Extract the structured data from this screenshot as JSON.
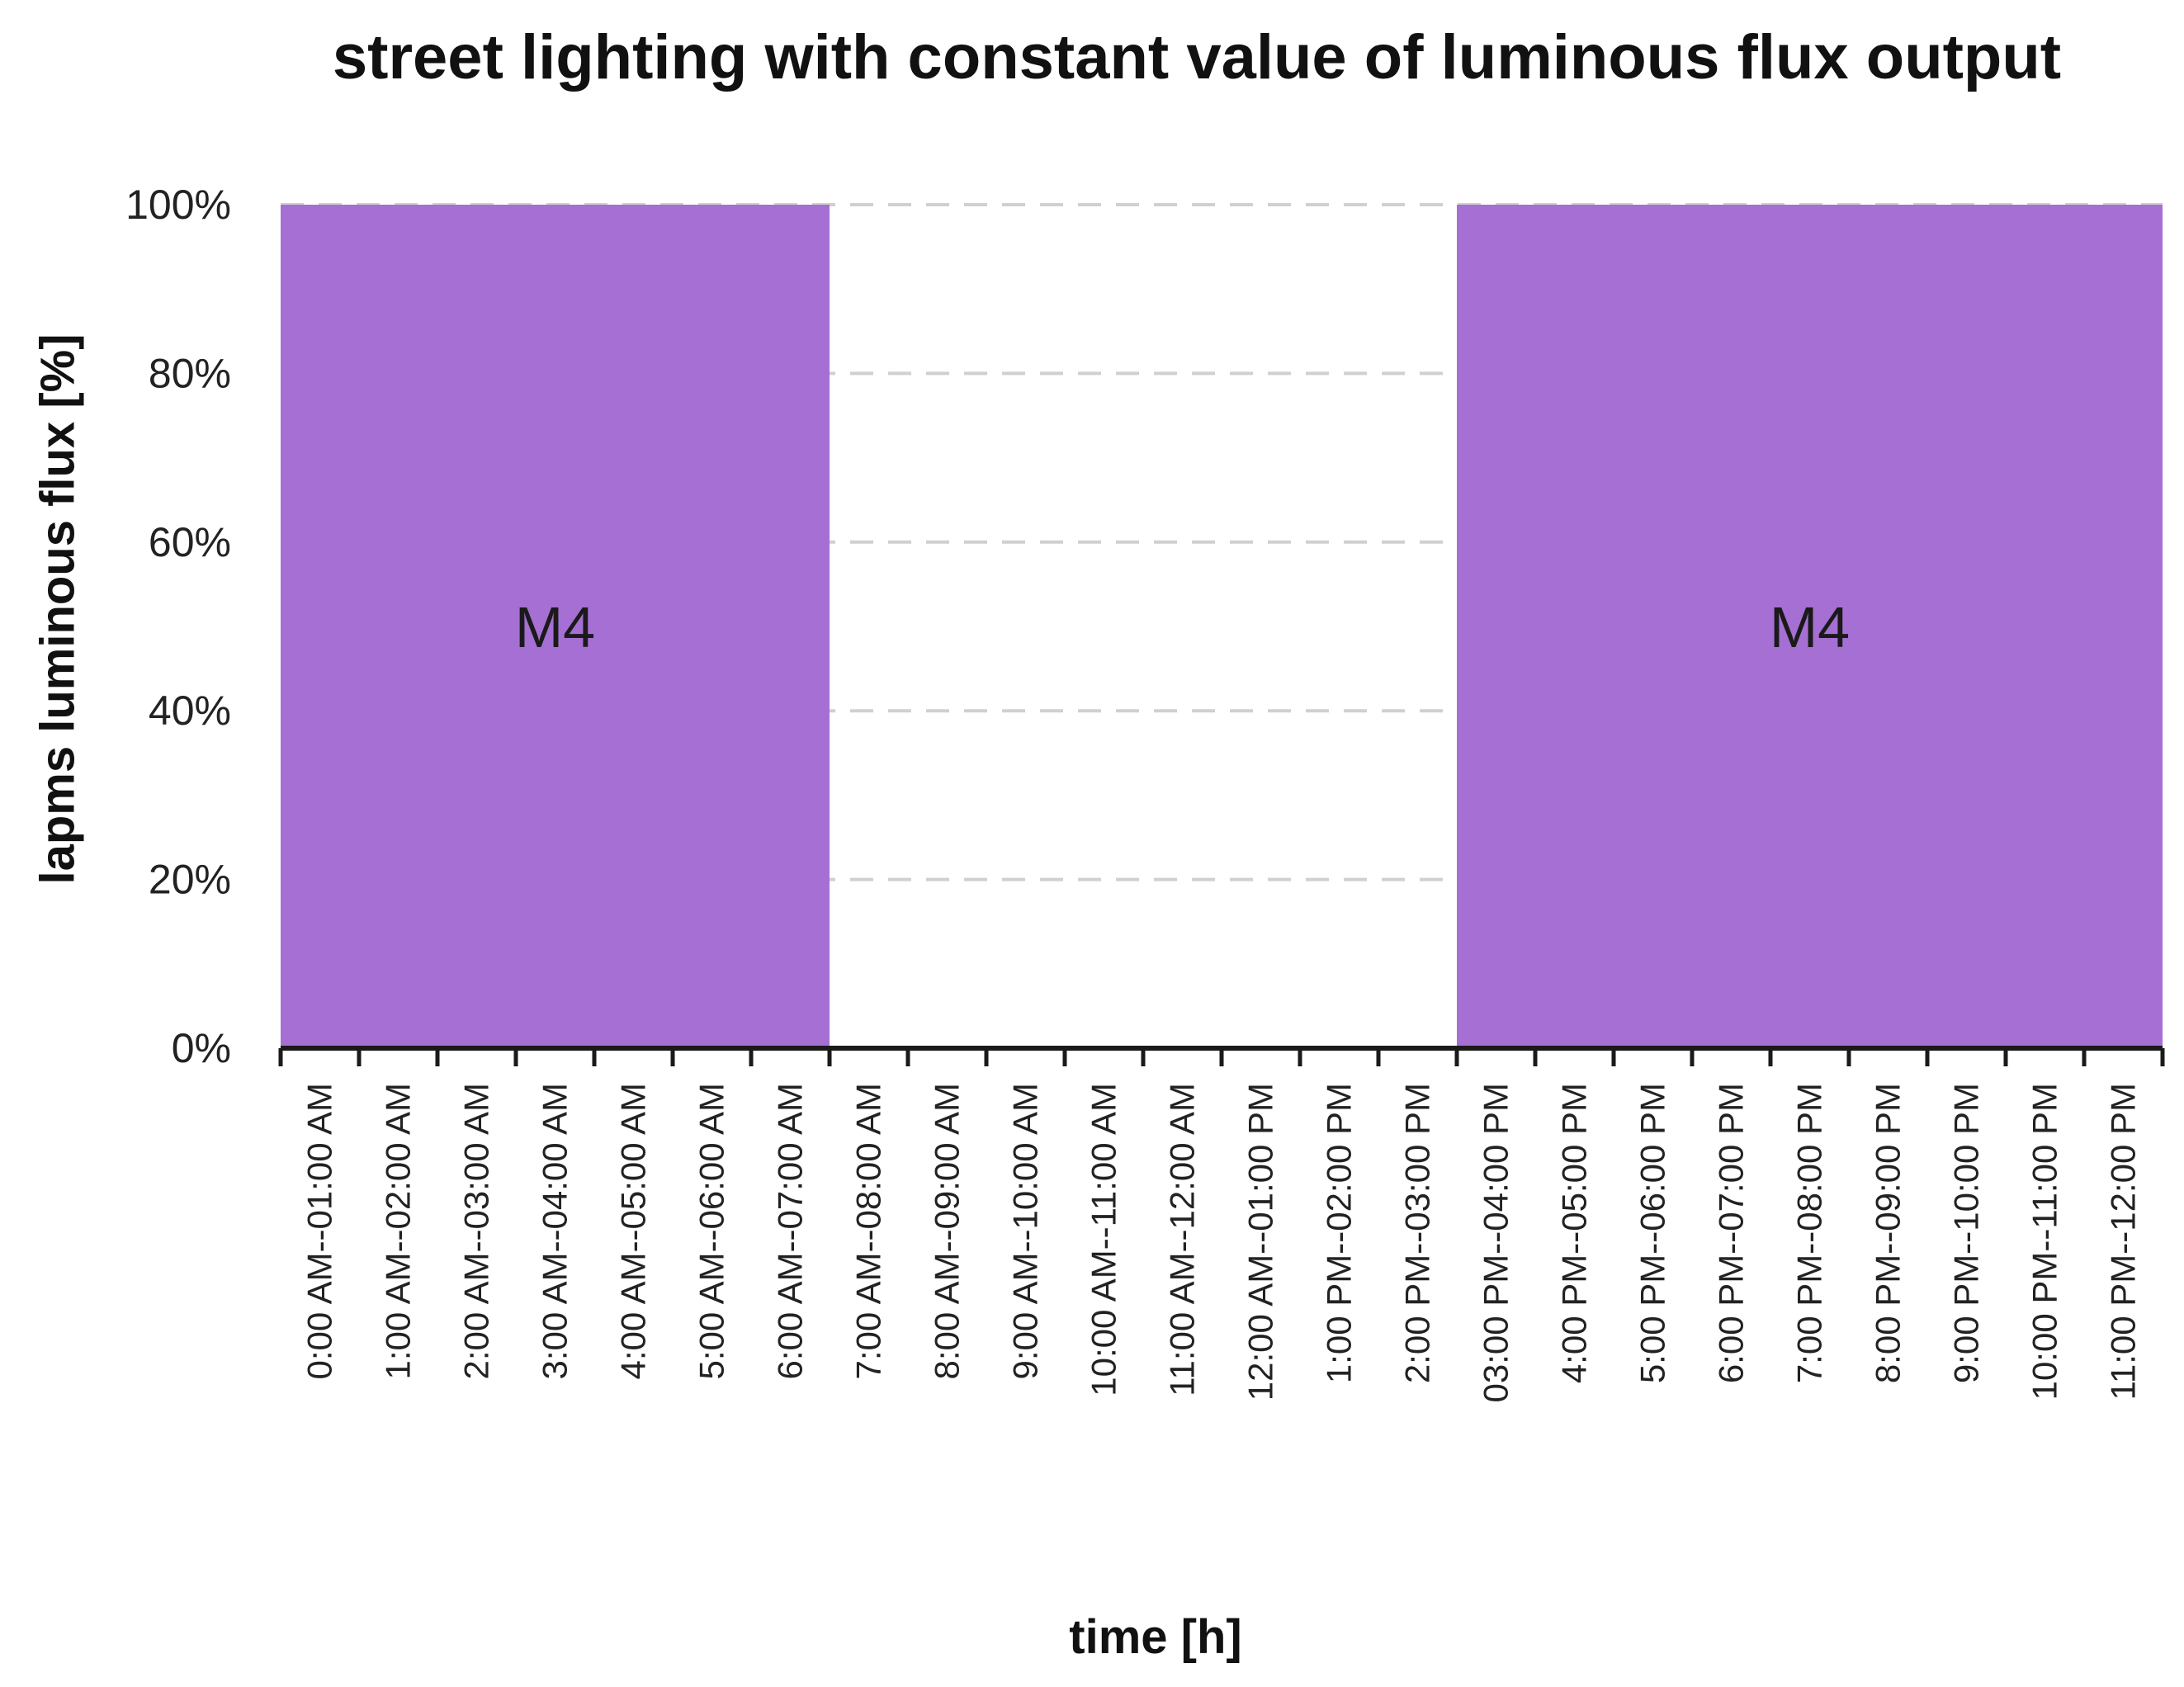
{
  "chart_data": {
    "type": "area",
    "title": "street lighting with constant value of luminous flux output",
    "xlabel": "time [h]",
    "ylabel": "lapms luminous flux [%]",
    "ylim": [
      0,
      100
    ],
    "yticks": [
      "0%",
      "20%",
      "40%",
      "60%",
      "80%",
      "100%"
    ],
    "grid": "horizontal dashed",
    "categories": [
      "0:00 AM--01:00 AM",
      "1:00 AM--02:00 AM",
      "2:00 AM--03:00 AM",
      "3:00 AM--04:00 AM",
      "4:00 AM--05:00 AM",
      "5:00 AM--06:00 AM",
      "6:00 AM--07:00 AM",
      "7:00 AM--08:00 AM",
      "8:00 AM--09:00 AM",
      "9:00 AM--10:00 AM",
      "10:00 AM--11:00 AM",
      "11:00 AM--12:00 AM",
      "12:00 AM--01:00 PM",
      "1:00 PM--02:00 PM",
      "2:00 PM--03:00 PM",
      "03:00 PM--04:00 PM",
      "4:00 PM--05:00 PM",
      "5:00 PM--06:00 PM",
      "6:00 PM--07:00 PM",
      "7:00 PM--08:00 PM",
      "8:00 PM--09:00 PM",
      "9:00 PM--10:00 PM",
      "10:00 PM--11:00 PM",
      "11:00 PM--12:00 PM"
    ],
    "series": [
      {
        "values": [
          100,
          100,
          100,
          100,
          100,
          100,
          100,
          0,
          0,
          0,
          0,
          0,
          0,
          0,
          0,
          100,
          100,
          100,
          100,
          100,
          100,
          100,
          100,
          100
        ],
        "color": "#a66fd3"
      }
    ],
    "annotations": [
      {
        "text": "M4",
        "from_category": 0,
        "to_category": 6
      },
      {
        "text": "M4",
        "from_category": 15,
        "to_category": 23
      }
    ]
  }
}
